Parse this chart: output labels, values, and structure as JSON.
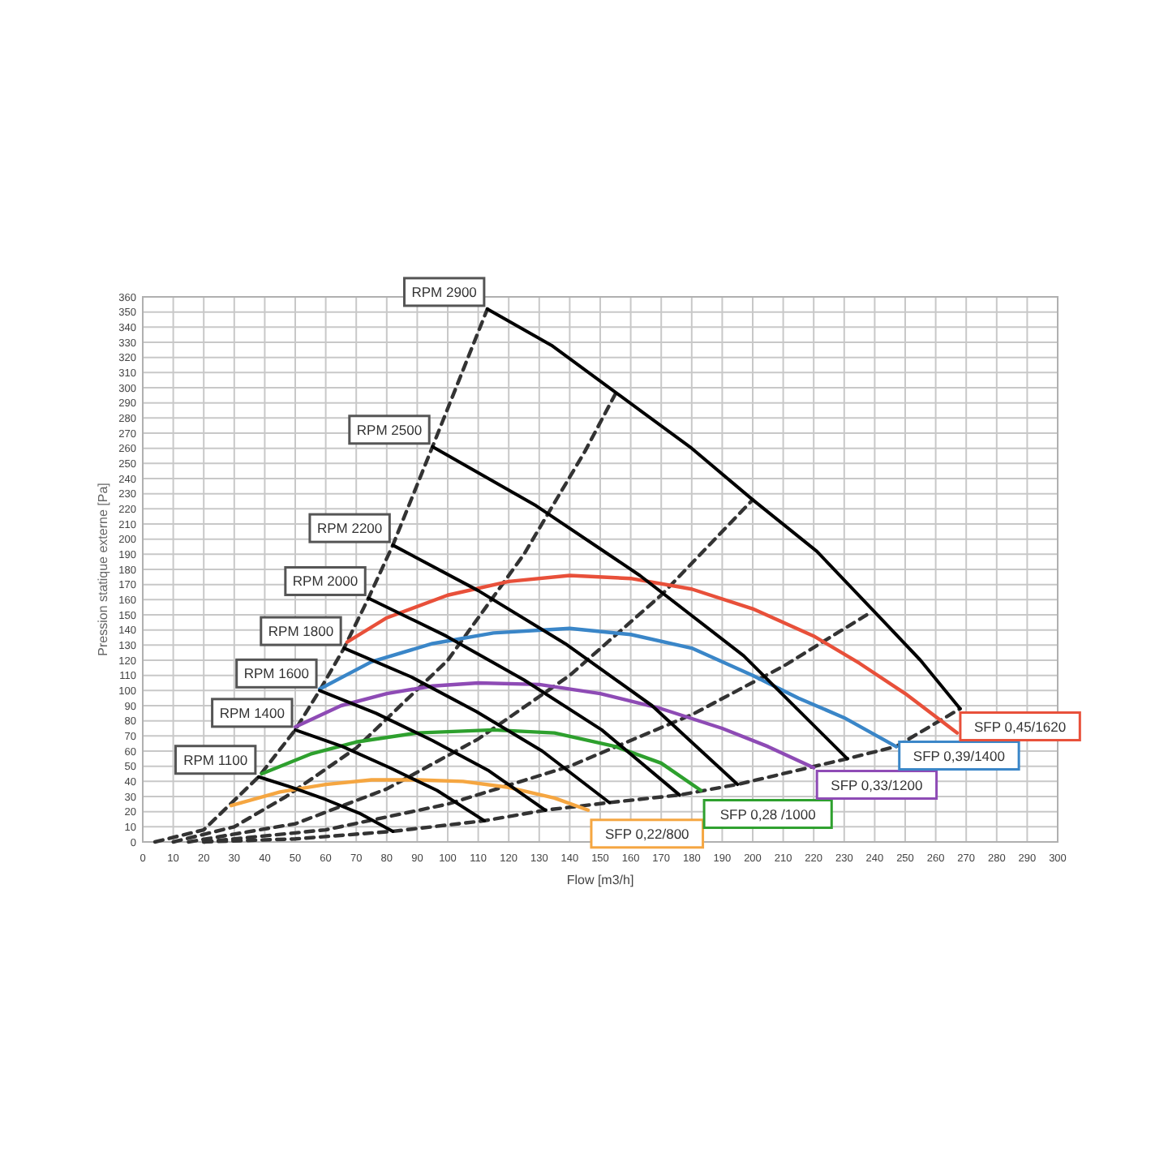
{
  "chart_data": {
    "type": "line",
    "xlabel": "Flow [m3/h]",
    "ylabel": "Pression statique externe [Pa]",
    "xlim": [
      0,
      300
    ],
    "xticks": [
      0,
      10,
      20,
      30,
      40,
      50,
      60,
      70,
      80,
      90,
      100,
      110,
      120,
      130,
      140,
      150,
      160,
      170,
      180,
      190,
      200,
      210,
      220,
      230,
      240,
      250,
      260,
      270,
      280,
      290,
      300
    ],
    "ylim": [
      0,
      360
    ],
    "yticks": [
      0,
      10,
      20,
      30,
      40,
      50,
      60,
      70,
      80,
      90,
      100,
      110,
      120,
      130,
      140,
      150,
      160,
      170,
      180,
      190,
      200,
      210,
      220,
      230,
      240,
      250,
      260,
      270,
      280,
      290,
      300,
      310,
      320,
      330,
      340,
      350,
      360
    ],
    "grid": true,
    "series": [
      {
        "color": "#333333",
        "line_style": "dashed",
        "x": [
          4,
          20,
          38,
          50,
          58,
          66,
          74,
          82,
          95,
          113
        ],
        "values": [
          0,
          8,
          43,
          74,
          100,
          128,
          161,
          196,
          261,
          352
        ]
      },
      {
        "color": "#333333",
        "line_style": "dashed",
        "x": [
          10,
          30,
          47,
          70,
          100,
          125,
          145,
          155
        ],
        "values": [
          0,
          10,
          30,
          62,
          120,
          190,
          258,
          296
        ]
      },
      {
        "color": "#333333",
        "line_style": "dashed",
        "x": [
          15,
          50,
          80,
          110,
          140,
          170,
          200
        ],
        "values": [
          0,
          12,
          35,
          68,
          110,
          163,
          226
        ]
      },
      {
        "color": "#333333",
        "line_style": "dashed",
        "x": [
          20,
          60,
          100,
          140,
          180,
          210,
          239
        ],
        "values": [
          0,
          8,
          25,
          50,
          84,
          116,
          152
        ]
      },
      {
        "color": "#333333",
        "line_style": "dashed",
        "x": [
          20,
          50,
          82,
          112,
          132,
          153,
          176,
          195,
          231,
          247,
          268
        ],
        "values": [
          0,
          2,
          7,
          14,
          21,
          26,
          31,
          38,
          55,
          63,
          88
        ]
      },
      {
        "color": "#f5a641",
        "line_style": "solid",
        "x": [
          29,
          45,
          60,
          75,
          90,
          105,
          120,
          135,
          146
        ],
        "values": [
          24,
          33,
          38,
          41,
          41,
          40,
          36,
          29,
          21
        ]
      },
      {
        "color": "#2ea02e",
        "line_style": "solid",
        "x": [
          39,
          55,
          70,
          90,
          115,
          135,
          155,
          170,
          183
        ],
        "values": [
          45,
          58,
          66,
          72,
          74,
          72,
          63,
          52,
          34
        ]
      },
      {
        "color": "#8e4bb5",
        "line_style": "solid",
        "x": [
          50,
          65,
          80,
          95,
          110,
          130,
          150,
          170,
          190,
          205,
          220
        ],
        "values": [
          76,
          90,
          98,
          103,
          105,
          104,
          98,
          88,
          75,
          63,
          49
        ]
      },
      {
        "color": "#3a86c8",
        "line_style": "solid",
        "x": [
          58,
          75,
          95,
          115,
          140,
          160,
          180,
          200,
          215,
          230,
          247
        ],
        "values": [
          101,
          119,
          131,
          138,
          141,
          137,
          128,
          110,
          95,
          82,
          63
        ]
      },
      {
        "color": "#e8503a",
        "line_style": "solid",
        "x": [
          67,
          80,
          100,
          120,
          140,
          160,
          180,
          200,
          220,
          235,
          250,
          267
        ],
        "values": [
          132,
          148,
          163,
          172,
          176,
          174,
          167,
          154,
          136,
          118,
          98,
          72
        ]
      },
      {
        "color": "#000000",
        "line_style": "solid",
        "x": [
          38,
          49,
          60,
          71,
          82
        ],
        "values": [
          43,
          36,
          28,
          19,
          7
        ]
      },
      {
        "color": "#000000",
        "line_style": "solid",
        "x": [
          50,
          65.5,
          81,
          96.5,
          112
        ],
        "values": [
          74,
          63,
          49,
          34,
          14
        ]
      },
      {
        "color": "#000000",
        "line_style": "solid",
        "x": [
          58,
          76.5,
          95,
          113.5,
          132
        ],
        "values": [
          100,
          85,
          67,
          47,
          21
        ]
      },
      {
        "color": "#000000",
        "line_style": "solid",
        "x": [
          66,
          88,
          109.5,
          131,
          153
        ],
        "values": [
          128,
          109,
          86,
          60,
          26
        ]
      },
      {
        "color": "#000000",
        "line_style": "solid",
        "x": [
          74,
          99.5,
          125,
          150.5,
          176
        ],
        "values": [
          161,
          136,
          107,
          74,
          31
        ]
      },
      {
        "color": "#000000",
        "line_style": "solid",
        "x": [
          82,
          110,
          138.5,
          167,
          195
        ],
        "values": [
          196,
          166,
          131,
          90,
          38
        ]
      },
      {
        "color": "#000000",
        "line_style": "solid",
        "x": [
          95,
          129,
          163,
          197,
          231
        ],
        "values": [
          261,
          222,
          176,
          123,
          55
        ]
      },
      {
        "color": "#000000",
        "line_style": "solid",
        "x": [
          113,
          134,
          157,
          180,
          200,
          221,
          239,
          255,
          268
        ],
        "values": [
          352,
          328,
          294,
          260,
          226,
          192,
          154,
          120,
          88
        ]
      }
    ],
    "annotations": [
      {
        "text": "RPM 1100",
        "x": 38,
        "y": 43
      },
      {
        "text": "RPM 1400",
        "x": 50,
        "y": 74
      },
      {
        "text": "RPM 1600",
        "x": 58,
        "y": 100
      },
      {
        "text": "RPM 1800",
        "x": 66,
        "y": 128
      },
      {
        "text": "RPM 2000",
        "x": 74,
        "y": 161
      },
      {
        "text": "RPM 2200",
        "x": 82,
        "y": 196
      },
      {
        "text": "RPM 2500",
        "x": 95,
        "y": 261
      },
      {
        "text": "RPM 2900",
        "x": 113,
        "y": 352
      },
      {
        "text": "SFP 0,22/800",
        "x": 146,
        "y": 21
      },
      {
        "text": "SFP 0,28 /1000",
        "x": 183,
        "y": 34
      },
      {
        "text": "SFP 0,33/1200",
        "x": 220,
        "y": 49
      },
      {
        "text": "SFP 0,39/1400",
        "x": 247,
        "y": 63
      },
      {
        "text": "SFP 0,45/1620",
        "x": 267,
        "y": 72
      }
    ]
  }
}
